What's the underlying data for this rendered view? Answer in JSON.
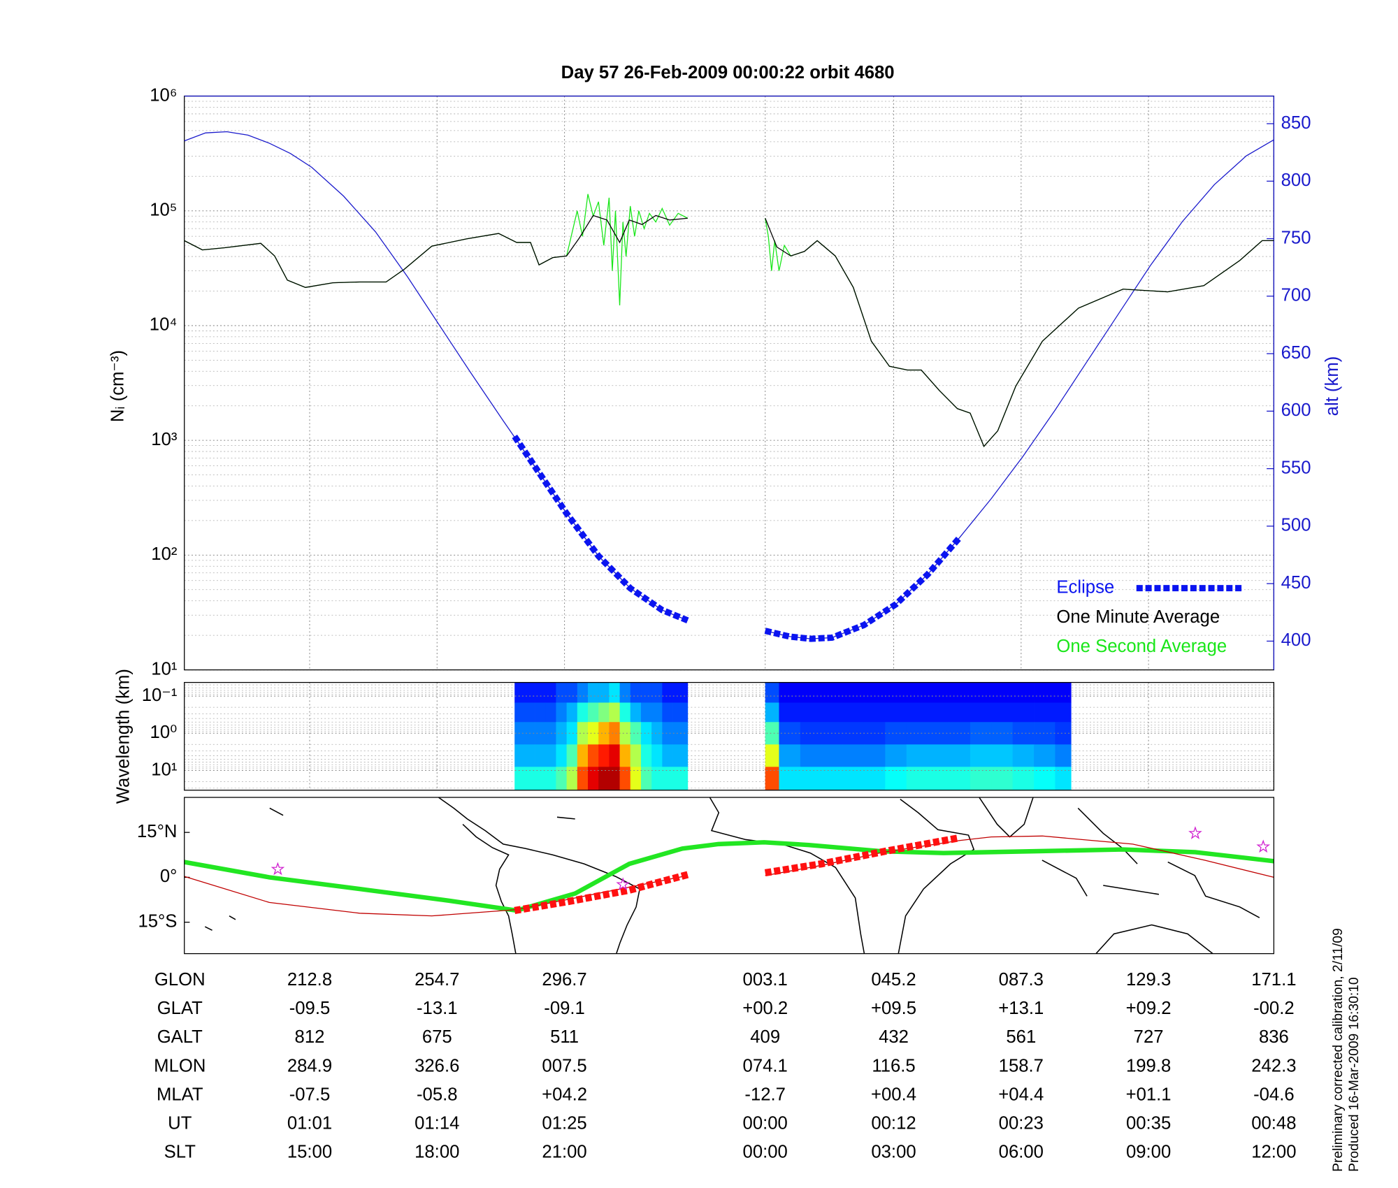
{
  "chart_data": [
    {
      "type": "line",
      "title": "Day 57  26-Feb-2009 00:00:22   orbit 4680",
      "ylabel": "Nᵢ (cm⁻³)",
      "y2label": "alt (km)",
      "xlim": [
        0,
        102.6
      ],
      "xticks": [
        11.8,
        23.8,
        35.8,
        54.7,
        66.8,
        78.8,
        90.8,
        102.6
      ],
      "ylim": [
        10,
        1000000
      ],
      "log_y": true,
      "yticks": [
        {
          "value": 10,
          "label": "10¹"
        },
        {
          "value": 100,
          "label": "10²"
        },
        {
          "value": 1000,
          "label": "10³"
        },
        {
          "value": 10000,
          "label": "10⁴"
        },
        {
          "value": 100000,
          "label": "10⁵"
        },
        {
          "value": 1000000,
          "label": "10⁶"
        }
      ],
      "y2lim": [
        375,
        874
      ],
      "y2ticks": [
        400,
        450,
        500,
        550,
        600,
        650,
        700,
        750,
        800,
        850
      ],
      "grid": true,
      "legend": "lower right",
      "series": [
        {
          "name": "Eclipse",
          "color": "#0a14f0",
          "axis": "y2",
          "style": "dashed",
          "x": [
            31.1,
            33,
            36,
            39,
            42,
            45,
            47.4,
            null,
            54.7,
            57,
            59,
            61,
            64,
            67,
            70,
            73
          ],
          "values": [
            578,
            552,
            511,
            474,
            446,
            427,
            418,
            null,
            409,
            404,
            402,
            403,
            414,
            432,
            458,
            490
          ]
        },
        {
          "name": "One Minute Average",
          "color": "#000000",
          "style": "thin",
          "x": [
            0,
            1.7,
            3.8,
            7.2,
            8.5,
            9.7,
            11.4,
            14.0,
            16.5,
            19.0,
            20.7,
            23.3,
            26.6,
            29.6,
            31.3,
            32.6,
            33.4,
            34.7,
            36.0,
            37.2,
            38.5,
            39.8,
            41.0,
            41.9,
            43.1,
            44.4,
            45.7,
            47.4,
            null,
            54.7,
            55.8,
            57.1,
            58.4,
            59.6,
            61.3,
            63.0,
            64.7,
            66.4,
            68.1,
            69.4,
            71.1,
            72.8,
            74.0,
            75.3,
            76.6,
            78.3,
            80.8,
            84.2,
            88.4,
            92.6,
            96.0,
            99.4,
            101.5,
            102.6
          ],
          "values": [
            55000,
            45700,
            47700,
            52100,
            40500,
            24900,
            21500,
            23600,
            24000,
            24000,
            30900,
            49300,
            57000,
            63500,
            53000,
            53000,
            33800,
            39100,
            40500,
            58000,
            91000,
            83200,
            53000,
            83200,
            76000,
            91000,
            83200,
            86300,
            null,
            86300,
            48400,
            40500,
            44300,
            55000,
            40500,
            21500,
            7310,
            4420,
            4100,
            4100,
            2720,
            1890,
            1730,
            887,
            1210,
            2970,
            7310,
            14200,
            20800,
            19700,
            22300,
            37000,
            55000,
            55000
          ]
        },
        {
          "name": "One Second Average",
          "color": "#19e619",
          "style": "thin",
          "x": [
            0,
            1.7,
            3.8,
            7.2,
            8.5,
            9.7,
            11.4,
            14.0,
            16.5,
            19.0,
            20.7,
            23.3,
            26.6,
            29.6,
            31.3,
            32.6,
            33.4,
            34.7,
            36.0,
            37.0,
            37.5,
            38.0,
            38.5,
            39.0,
            39.5,
            40.0,
            40.3,
            40.6,
            41.0,
            41.3,
            41.6,
            42.0,
            42.4,
            42.8,
            43.3,
            43.8,
            44.4,
            45.0,
            45.7,
            46.5,
            47.4,
            null,
            54.7,
            55.0,
            55.3,
            55.6,
            56.0,
            56.5,
            57.1,
            58.4,
            59.6,
            61.3,
            63.0,
            64.7,
            66.4,
            68.1,
            69.4,
            71.1,
            72.8,
            74.0,
            75.3,
            76.6,
            78.3,
            80.8,
            84.2,
            88.4,
            92.6,
            96.0,
            99.4,
            101.5,
            102.6
          ],
          "values": [
            55000,
            45700,
            47700,
            52100,
            40500,
            24900,
            21500,
            23600,
            24000,
            24000,
            30900,
            49300,
            57000,
            63500,
            53000,
            53000,
            33800,
            39100,
            40500,
            100000,
            60000,
            140000,
            90000,
            120000,
            50000,
            130000,
            30000,
            100000,
            15000,
            80000,
            40000,
            110000,
            60000,
            100000,
            70000,
            95000,
            80000,
            105000,
            75000,
            95000,
            86300,
            null,
            86300,
            60000,
            30000,
            55000,
            30000,
            50000,
            40500,
            44300,
            55000,
            40500,
            21500,
            7310,
            4420,
            4100,
            4100,
            2720,
            1890,
            1730,
            887,
            1210,
            2970,
            7310,
            14200,
            20800,
            19700,
            22300,
            37000,
            55000,
            55000
          ]
        },
        {
          "color": "#1a1acc",
          "axis": "y2",
          "style": "thin",
          "x": [
            0,
            2,
            4,
            6,
            8,
            10,
            12,
            15,
            18,
            21,
            24,
            27,
            30,
            33,
            36,
            39,
            42,
            45,
            47.4,
            null,
            54.7,
            57,
            59,
            61,
            64,
            67,
            70,
            73,
            76,
            79,
            82,
            85,
            88,
            91,
            94,
            97,
            100,
            102.6
          ],
          "values": [
            835,
            842,
            843,
            840,
            833,
            824,
            812,
            787,
            756,
            717,
            675,
            633,
            592,
            552,
            511,
            474,
            446,
            427,
            418,
            null,
            409,
            404,
            402,
            403,
            414,
            432,
            458,
            490,
            524,
            561,
            601,
            643,
            685,
            727,
            765,
            797,
            822,
            836
          ]
        }
      ]
    },
    {
      "type": "heatmap",
      "ylabel": "Wavelength (km)",
      "ylim": [
        34,
        0.043
      ],
      "log_y": true,
      "yticks": [
        {
          "value": 0.1,
          "label": "10⁻¹"
        },
        {
          "value": 1,
          "label": "10⁰"
        },
        {
          "value": 10,
          "label": "10¹"
        }
      ],
      "grid": true,
      "colormap": "jet",
      "zlim": [
        0,
        1
      ],
      "ybins": [
        0.043,
        0.15,
        0.5,
        2,
        8,
        34
      ],
      "blocks": [
        {
          "xbins": [
            31.1,
            32,
            33,
            34,
            35,
            36,
            37,
            38,
            39,
            40,
            41,
            42,
            43,
            44,
            45,
            46,
            47.4
          ],
          "z": [
            [
              0.15,
              0.15,
              0.15,
              0.15,
              0.2,
              0.2,
              0.25,
              0.3,
              0.3,
              0.35,
              0.25,
              0.2,
              0.2,
              0.2,
              0.15,
              0.15
            ],
            [
              0.2,
              0.2,
              0.2,
              0.2,
              0.25,
              0.3,
              0.4,
              0.45,
              0.5,
              0.55,
              0.4,
              0.3,
              0.25,
              0.25,
              0.2,
              0.2
            ],
            [
              0.25,
              0.25,
              0.25,
              0.25,
              0.3,
              0.35,
              0.55,
              0.6,
              0.7,
              0.75,
              0.55,
              0.45,
              0.35,
              0.3,
              0.25,
              0.25
            ],
            [
              0.3,
              0.3,
              0.3,
              0.3,
              0.35,
              0.45,
              0.7,
              0.8,
              0.85,
              0.9,
              0.7,
              0.55,
              0.4,
              0.35,
              0.3,
              0.3
            ],
            [
              0.4,
              0.4,
              0.4,
              0.4,
              0.45,
              0.55,
              0.8,
              0.9,
              0.95,
              0.95,
              0.8,
              0.6,
              0.45,
              0.4,
              0.4,
              0.4
            ]
          ]
        },
        {
          "xbins": [
            54.7,
            56,
            58,
            60,
            62,
            64,
            66,
            68,
            70,
            72,
            74,
            76,
            78,
            80,
            82,
            83.5
          ],
          "z": [
            [
              0.2,
              0.12,
              0.12,
              0.12,
              0.12,
              0.12,
              0.12,
              0.12,
              0.12,
              0.12,
              0.12,
              0.12,
              0.12,
              0.12,
              0.12
            ],
            [
              0.3,
              0.15,
              0.15,
              0.15,
              0.15,
              0.15,
              0.15,
              0.15,
              0.15,
              0.15,
              0.15,
              0.15,
              0.15,
              0.15,
              0.15
            ],
            [
              0.45,
              0.2,
              0.18,
              0.18,
              0.18,
              0.18,
              0.2,
              0.2,
              0.2,
              0.2,
              0.22,
              0.22,
              0.2,
              0.2,
              0.18
            ],
            [
              0.6,
              0.28,
              0.25,
              0.25,
              0.25,
              0.25,
              0.28,
              0.3,
              0.3,
              0.3,
              0.32,
              0.32,
              0.3,
              0.28,
              0.25
            ],
            [
              0.8,
              0.35,
              0.35,
              0.35,
              0.35,
              0.35,
              0.38,
              0.4,
              0.4,
              0.4,
              0.42,
              0.42,
              0.4,
              0.38,
              0.35
            ]
          ]
        }
      ]
    },
    {
      "type": "map",
      "ylim": [
        -25.5,
        26.7
      ],
      "yticks": [
        {
          "value": 15,
          "label": "15°N"
        },
        {
          "value": 0,
          "label": "0°"
        },
        {
          "value": -15,
          "label": "15°S"
        }
      ],
      "series": [
        {
          "color": "#22e622",
          "style": "thick",
          "x": [
            0,
            8.0,
            16.5,
            24.9,
            31.3,
            36.8,
            41.9,
            46.9,
            50.3,
            54.6,
            58.8,
            65.7,
            71.5,
            80.0,
            88.4,
            95.2,
            102.6
          ],
          "values": [
            5.1,
            0,
            -3.9,
            -7.8,
            -11.1,
            -5.4,
            4.5,
            9.6,
            11.1,
            11.7,
            10.8,
            8.7,
            8.1,
            8.7,
            9.3,
            8.4,
            5.4
          ]
        },
        {
          "color": "#c00000",
          "style": "thin",
          "x": [
            0,
            8.0,
            16.5,
            23.3,
            31.3,
            41.9,
            47.4,
            null,
            54.7,
            60,
            66,
            73,
            76,
            80.8,
            89.3,
            96.1,
            102.6
          ],
          "values": [
            0.3,
            -8.4,
            -12,
            -12.9,
            -10.8,
            -3.3,
            0.6,
            null,
            0.6,
            4,
            8.5,
            12.3,
            13.5,
            13.8,
            11.1,
            5.7,
            0
          ]
        },
        {
          "color": "#ff1010",
          "style": "dashed",
          "x": [
            31.1,
            36,
            41.9,
            47.4,
            null,
            54.7,
            60,
            66,
            73
          ],
          "values": [
            -11.1,
            -8.2,
            -4.3,
            0.9,
            null,
            1.5,
            4.5,
            8.7,
            13.2
          ]
        }
      ],
      "markers": {
        "color": "#d020d0",
        "marker": "star",
        "x": [
          8.8,
          41.3,
          95.2,
          101.6
        ],
        "values": [
          2.7,
          -2.4,
          14.7,
          10.2
        ]
      }
    }
  ],
  "table": {
    "rows": [
      {
        "label": "GLON",
        "cells": [
          "212.8",
          "254.7",
          "296.7",
          "003.1",
          "045.2",
          "087.3",
          "129.3",
          "171.1"
        ]
      },
      {
        "label": "GLAT",
        "cells": [
          "-09.5",
          "-13.1",
          "-09.1",
          "+00.2",
          "+09.5",
          "+13.1",
          "+09.2",
          "-00.2"
        ]
      },
      {
        "label": "GALT",
        "cells": [
          "812",
          "675",
          "511",
          "409",
          "432",
          "561",
          "727",
          "836"
        ]
      },
      {
        "label": "MLON",
        "cells": [
          "284.9",
          "326.6",
          "007.5",
          "074.1",
          "116.5",
          "158.7",
          "199.8",
          "242.3"
        ]
      },
      {
        "label": "MLAT",
        "cells": [
          "-07.5",
          "-05.8",
          "+04.2",
          "-12.7",
          "+00.4",
          "+04.4",
          "+01.1",
          "-04.6"
        ]
      },
      {
        "label": "UT",
        "cells": [
          "01:01",
          "01:14",
          "01:25",
          "00:00",
          "00:12",
          "00:23",
          "00:35",
          "00:48"
        ]
      },
      {
        "label": "SLT",
        "cells": [
          "15:00",
          "18:00",
          "21:00",
          "00:00",
          "03:00",
          "06:00",
          "09:00",
          "12:00"
        ]
      }
    ]
  },
  "notes": [
    "Preliminary corrected calibration, 2/11/09",
    "Produced 16-Mar-2009 16:30:10"
  ]
}
